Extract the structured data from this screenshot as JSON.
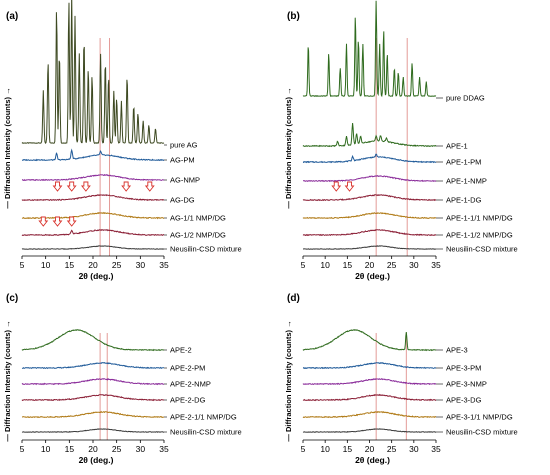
{
  "figure": {
    "y_axis_label": "— Diffraction Intensity (counts) →",
    "x_axis_label": "2θ (deg.)",
    "colors": {
      "pure": "#3e4a22",
      "dark_green": "#2f6b1e",
      "blue": "#1f5a99",
      "purple": "#8a2c9a",
      "maroon": "#8b1f36",
      "orange": "#b07a16",
      "dark_gray": "#3a3a3a",
      "ref_line": "#e0908c",
      "arrow": "#d8312b"
    }
  },
  "chart_data": [
    {
      "type": "line",
      "panel": "(a)",
      "xlim": [
        5,
        35
      ],
      "x_ticks": [
        "5",
        "10",
        "15",
        "20",
        "25",
        "30",
        "35"
      ],
      "ref_lines_2theta": [
        21.5,
        23.5
      ],
      "series": [
        {
          "name": "pure AG",
          "color": "#3e4a22",
          "kind": "crystal",
          "peaks": [
            [
              9.5,
              0.35
            ],
            [
              10.5,
              0.55
            ],
            [
              12.3,
              0.9
            ],
            [
              12.9,
              0.6
            ],
            [
              14.9,
              0.95
            ],
            [
              15.5,
              1.0
            ],
            [
              16.2,
              0.85
            ],
            [
              17.1,
              0.6
            ],
            [
              18.1,
              0.7
            ],
            [
              19.0,
              0.5
            ],
            [
              19.8,
              0.45
            ],
            [
              21.6,
              0.6
            ],
            [
              22.6,
              0.55
            ],
            [
              23.3,
              0.45
            ],
            [
              24.4,
              0.35
            ],
            [
              25.0,
              0.3
            ],
            [
              26.0,
              0.28
            ],
            [
              27.2,
              0.45
            ],
            [
              28.6,
              0.25
            ],
            [
              29.5,
              0.2
            ],
            [
              30.6,
              0.15
            ],
            [
              31.8,
              0.12
            ],
            [
              33.2,
              0.1
            ]
          ]
        },
        {
          "name": "AG-PM",
          "color": "#1f5a99",
          "kind": "amorph",
          "peaks": [
            [
              12.3,
              0.35
            ],
            [
              15.5,
              0.5
            ],
            [
              21.6,
              0.2
            ]
          ]
        },
        {
          "name": "AG-NMP",
          "color": "#8a2c9a",
          "kind": "amorph",
          "peaks": []
        },
        {
          "name": "AG-DG",
          "color": "#8b1f36",
          "kind": "amorph",
          "peaks": [],
          "arrows_2theta": [
            12.5,
            15.5,
            18.5,
            27.0,
            32.0
          ]
        },
        {
          "name": "AG-1/1 NMP/DG",
          "color": "#b07a16",
          "kind": "amorph",
          "peaks": []
        },
        {
          "name": "AG-1/2 NMP/DG",
          "color": "#8b1f36",
          "kind": "amorph",
          "peaks": [
            [
              15.5,
              0.2
            ]
          ],
          "arrows_2theta": [
            9.5,
            12.5,
            15.5
          ]
        },
        {
          "name": "Neusilin-CSD mixture",
          "color": "#3a3a3a",
          "kind": "flat",
          "peaks": []
        }
      ]
    },
    {
      "type": "line",
      "panel": "(b)",
      "xlim": [
        5,
        35
      ],
      "x_ticks": [
        "5",
        "10",
        "15",
        "20",
        "25",
        "30",
        "35"
      ],
      "ref_lines_2theta": [
        21.5,
        28.5
      ],
      "series": [
        {
          "name": "pure DDAG",
          "color": "#2f6b1e",
          "kind": "crystal",
          "peaks": [
            [
              6.2,
              0.55
            ],
            [
              10.8,
              0.45
            ],
            [
              13.4,
              0.3
            ],
            [
              14.8,
              0.55
            ],
            [
              16.8,
              0.85
            ],
            [
              17.5,
              0.6
            ],
            [
              18.5,
              0.55
            ],
            [
              21.5,
              1.0
            ],
            [
              22.3,
              0.55
            ],
            [
              23.2,
              0.7
            ],
            [
              24.0,
              0.45
            ],
            [
              25.6,
              0.3
            ],
            [
              26.5,
              0.25
            ],
            [
              27.6,
              0.2
            ],
            [
              29.6,
              0.35
            ],
            [
              31.3,
              0.2
            ],
            [
              32.8,
              0.15
            ]
          ]
        },
        {
          "name": "APE-1",
          "color": "#2f6b1e",
          "kind": "amorph",
          "peaks": [
            [
              12.8,
              0.25
            ],
            [
              14.8,
              0.5
            ],
            [
              16.2,
              1.2
            ],
            [
              17.1,
              0.6
            ],
            [
              18.0,
              0.4
            ],
            [
              21.5,
              0.3
            ],
            [
              22.5,
              0.3
            ],
            [
              23.8,
              0.2
            ]
          ]
        },
        {
          "name": "APE-1-PM",
          "color": "#1f5a99",
          "kind": "amorph",
          "peaks": [
            [
              16.2,
              0.25
            ],
            [
              21.5,
              0.15
            ]
          ]
        },
        {
          "name": "APE-1-NMP",
          "color": "#8a2c9a",
          "kind": "amorph",
          "peaks": []
        },
        {
          "name": "APE-1-DG",
          "color": "#8b1f36",
          "kind": "amorph",
          "peaks": [],
          "arrows_2theta": [
            12.5,
            15.5
          ]
        },
        {
          "name": "APE-1-1/1 NMP/DG",
          "color": "#b07a16",
          "kind": "amorph",
          "peaks": []
        },
        {
          "name": "APE-1-1/2 NMP/DG",
          "color": "#8b1f36",
          "kind": "amorph",
          "peaks": []
        },
        {
          "name": "Neusilin-CSD mixture",
          "color": "#3a3a3a",
          "kind": "flat",
          "peaks": []
        }
      ]
    },
    {
      "type": "line",
      "panel": "(c)",
      "xlim": [
        5,
        35
      ],
      "x_ticks": [
        "5",
        "10",
        "15",
        "20",
        "25",
        "30",
        "35"
      ],
      "ref_lines_2theta": [
        21.5,
        23.0
      ],
      "series": [
        {
          "name": "APE-2",
          "color": "#2f6b1e",
          "kind": "hump",
          "peaks": []
        },
        {
          "name": "APE-2-PM",
          "color": "#1f5a99",
          "kind": "amorph",
          "peaks": []
        },
        {
          "name": "APE-2-NMP",
          "color": "#8a2c9a",
          "kind": "amorph",
          "peaks": []
        },
        {
          "name": "APE-2-DG",
          "color": "#8b1f36",
          "kind": "amorph",
          "peaks": []
        },
        {
          "name": "APE-2-1/1 NMP/DG",
          "color": "#b07a16",
          "kind": "amorph",
          "peaks": []
        },
        {
          "name": "Neusilin-CSD mixture",
          "color": "#3a3a3a",
          "kind": "flat",
          "peaks": []
        }
      ]
    },
    {
      "type": "line",
      "panel": "(d)",
      "xlim": [
        5,
        35
      ],
      "x_ticks": [
        "5",
        "10",
        "15",
        "20",
        "25",
        "30",
        "35"
      ],
      "ref_lines_2theta": [
        21.5,
        28.3
      ],
      "series": [
        {
          "name": "APE-3",
          "color": "#2f6b1e",
          "kind": "hump",
          "peaks": [
            [
              28.3,
              0.9
            ]
          ]
        },
        {
          "name": "APE-3-PM",
          "color": "#1f5a99",
          "kind": "amorph",
          "peaks": []
        },
        {
          "name": "APE-3-NMP",
          "color": "#8a2c9a",
          "kind": "amorph",
          "peaks": []
        },
        {
          "name": "APE-3-DG",
          "color": "#8b1f36",
          "kind": "amorph",
          "peaks": []
        },
        {
          "name": "APE-3-1/1 NMP/DG",
          "color": "#b07a16",
          "kind": "amorph",
          "peaks": []
        },
        {
          "name": "Neusilin-CSD mixture",
          "color": "#3a3a3a",
          "kind": "flat",
          "peaks": []
        }
      ]
    }
  ]
}
